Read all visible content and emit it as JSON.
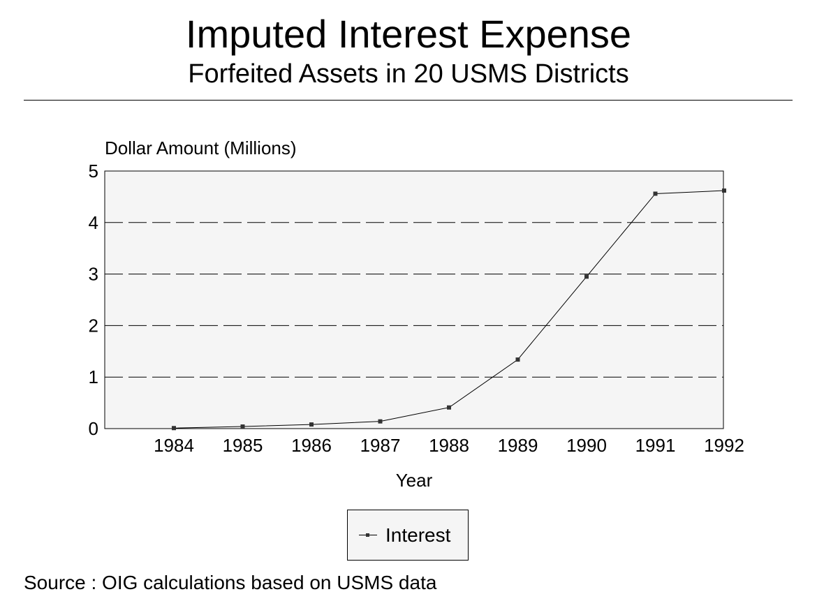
{
  "chart_data": {
    "type": "line",
    "title": "Imputed Interest Expense",
    "subtitle": "Forfeited Assets in 20 USMS Districts",
    "xlabel": "Year",
    "ylabel": "Dollar Amount (Millions)",
    "categories": [
      "1984",
      "1985",
      "1986",
      "1987",
      "1988",
      "1989",
      "1990",
      "1991",
      "1992"
    ],
    "yticks": [
      "0",
      "1",
      "2",
      "3",
      "4",
      "5"
    ],
    "ylim": [
      0,
      5
    ],
    "grid": "horizontal dashed",
    "legend_position": "bottom-center",
    "series": [
      {
        "name": "Interest",
        "values": [
          0.01,
          0.04,
          0.08,
          0.14,
          0.41,
          1.34,
          2.95,
          4.56,
          4.62
        ]
      }
    ],
    "colors": {
      "plot_background": "#f5f5f5",
      "line": "#000000",
      "marker": "#333333",
      "grid": "#000000"
    }
  },
  "source": "Source :  OIG calculations based on USMS data"
}
